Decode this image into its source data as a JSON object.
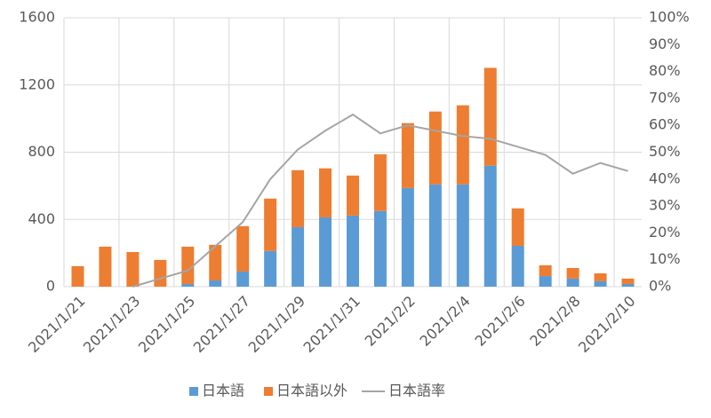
{
  "chart_data": {
    "type": "bar-line",
    "categories": [
      "2021/1/21",
      null,
      "2021/1/23",
      null,
      "2021/1/25",
      null,
      "2021/1/27",
      null,
      "2021/1/29",
      null,
      "2021/1/31",
      null,
      "2021/2/2",
      null,
      "2021/2/4",
      null,
      "2021/2/6",
      null,
      "2021/2/8",
      null,
      "2021/2/10"
    ],
    "series": [
      {
        "name": "日本語",
        "color": "#5b9bd5",
        "values": [
          0,
          0,
          0,
          0,
          16,
          37,
          90,
          212,
          354,
          412,
          423,
          450,
          587,
          608,
          608,
          720,
          243,
          63,
          48,
          32,
          16
        ]
      },
      {
        "name": "日本語以外",
        "color": "#ed7d31",
        "values": [
          122,
          238,
          206,
          159,
          222,
          212,
          270,
          312,
          339,
          292,
          238,
          338,
          386,
          434,
          471,
          582,
          223,
          64,
          63,
          47,
          32
        ]
      },
      {
        "name": "日本語率",
        "color": "#a5a5a5",
        "axis": "y2",
        "values": [
          null,
          null,
          0,
          3,
          6,
          15,
          24,
          40,
          51,
          58,
          64,
          57,
          60,
          58,
          56,
          55,
          52,
          49,
          42,
          46,
          43
        ]
      }
    ],
    "ylim": [
      0,
      1600
    ],
    "yticks": [
      0,
      400,
      800,
      1200,
      1600
    ],
    "y2lim": [
      0,
      100
    ],
    "y2ticks": [
      {
        "value": 0,
        "label": "0%"
      },
      {
        "value": 10,
        "label": "10%"
      },
      {
        "value": 20,
        "label": "20%"
      },
      {
        "value": 30,
        "label": "30%"
      },
      {
        "value": 40,
        "label": "40%"
      },
      {
        "value": 50,
        "label": "50%"
      },
      {
        "value": 60,
        "label": "60%"
      },
      {
        "value": 70,
        "label": "70%"
      },
      {
        "value": 80,
        "label": "80%"
      },
      {
        "value": 90,
        "label": "90%"
      },
      {
        "value": 100,
        "label": "100%"
      }
    ],
    "grid": true
  }
}
